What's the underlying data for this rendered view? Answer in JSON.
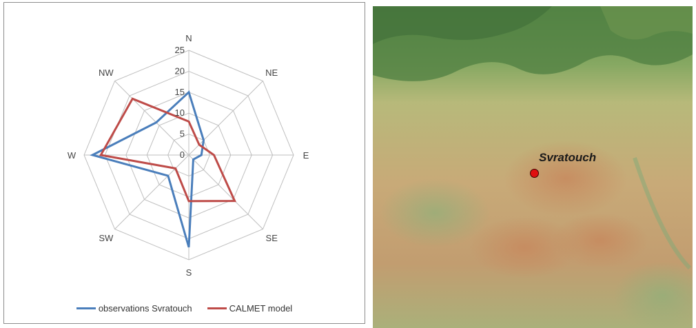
{
  "chart_data": {
    "type": "radar",
    "categories": [
      "N",
      "NE",
      "E",
      "SE",
      "S",
      "SW",
      "W",
      "NW"
    ],
    "radial_ticks": [
      "0",
      "5",
      "10",
      "15",
      "20",
      "25"
    ],
    "rlim": [
      0,
      25
    ],
    "grid": true,
    "legend_position": "bottom",
    "series": [
      {
        "name": "observations Svratouch",
        "color": "#4a7ebb",
        "values": [
          15,
          5,
          3,
          1.5,
          22,
          7,
          23,
          11
        ]
      },
      {
        "name": "CALMET model",
        "color": "#be4b48",
        "values": [
          8,
          3.5,
          6,
          15.5,
          11,
          4.5,
          21,
          19
        ]
      }
    ]
  },
  "map": {
    "station_label": "Svratouch",
    "station_color": "#e01010"
  }
}
